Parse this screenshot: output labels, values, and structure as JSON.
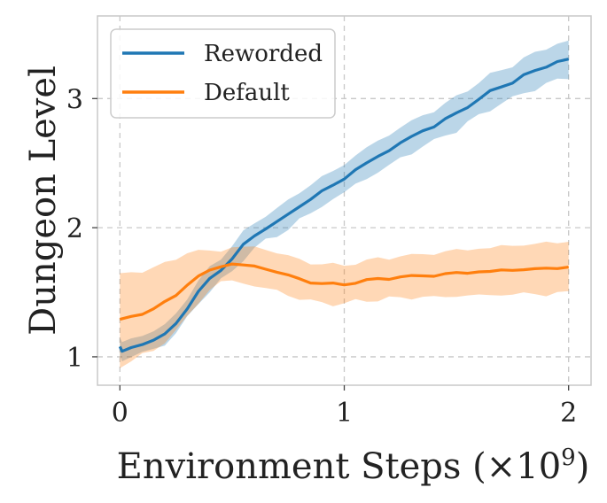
{
  "chart_data": {
    "type": "line",
    "title": "",
    "xlabel": "Environment Steps (×10",
    "xlabel_exponent": "9",
    "xlabel_close": ")",
    "ylabel": "Dungeon Level",
    "xlim": [
      -0.1,
      2.1
    ],
    "ylim": [
      0.78,
      3.64
    ],
    "x_ticks": [
      0,
      1,
      2
    ],
    "x_tick_labels": [
      "0",
      "1",
      "2"
    ],
    "y_ticks": [
      1,
      2,
      3
    ],
    "y_tick_labels": [
      "1",
      "2",
      "3"
    ],
    "grid": true,
    "legend_position": "top-left",
    "series": [
      {
        "name": "Reworded",
        "color": "#1f77b4",
        "x": [
          0,
          0.01,
          0.05,
          0.1,
          0.15,
          0.2,
          0.25,
          0.3,
          0.35,
          0.4,
          0.45,
          0.5,
          0.55,
          0.6,
          0.65,
          0.7,
          0.75,
          0.8,
          0.85,
          0.9,
          0.95,
          1.0,
          1.05,
          1.1,
          1.15,
          1.2,
          1.25,
          1.3,
          1.35,
          1.4,
          1.45,
          1.5,
          1.55,
          1.6,
          1.65,
          1.7,
          1.75,
          1.8,
          1.85,
          1.9,
          1.95,
          2.0
        ],
        "values": [
          1.08,
          1.04,
          1.07,
          1.1,
          1.13,
          1.17,
          1.26,
          1.38,
          1.5,
          1.6,
          1.68,
          1.76,
          1.86,
          1.94,
          2.0,
          2.04,
          2.1,
          2.17,
          2.22,
          2.28,
          2.33,
          2.38,
          2.45,
          2.5,
          2.55,
          2.6,
          2.66,
          2.7,
          2.75,
          2.79,
          2.84,
          2.88,
          2.94,
          3.0,
          3.05,
          3.09,
          3.13,
          3.18,
          3.21,
          3.25,
          3.29,
          3.3
        ],
        "band": [
          0.07,
          0.07,
          0.07,
          0.07,
          0.07,
          0.07,
          0.08,
          0.08,
          0.08,
          0.09,
          0.09,
          0.1,
          0.1,
          0.1,
          0.1,
          0.1,
          0.11,
          0.11,
          0.11,
          0.11,
          0.11,
          0.11,
          0.11,
          0.12,
          0.12,
          0.12,
          0.12,
          0.12,
          0.12,
          0.12,
          0.12,
          0.13,
          0.13,
          0.13,
          0.13,
          0.13,
          0.13,
          0.13,
          0.14,
          0.14,
          0.14,
          0.14
        ]
      },
      {
        "name": "Default",
        "color": "#ff7f0e",
        "x": [
          0,
          0.05,
          0.1,
          0.15,
          0.2,
          0.25,
          0.3,
          0.35,
          0.4,
          0.45,
          0.5,
          0.55,
          0.6,
          0.65,
          0.7,
          0.75,
          0.8,
          0.85,
          0.9,
          0.95,
          1.0,
          1.05,
          1.1,
          1.15,
          1.2,
          1.25,
          1.3,
          1.35,
          1.4,
          1.45,
          1.5,
          1.55,
          1.6,
          1.65,
          1.7,
          1.75,
          1.8,
          1.85,
          1.9,
          1.95,
          2.0
        ],
        "values": [
          1.28,
          1.31,
          1.34,
          1.37,
          1.42,
          1.48,
          1.56,
          1.62,
          1.67,
          1.7,
          1.72,
          1.71,
          1.7,
          1.68,
          1.66,
          1.63,
          1.6,
          1.58,
          1.57,
          1.56,
          1.56,
          1.58,
          1.59,
          1.6,
          1.61,
          1.62,
          1.62,
          1.63,
          1.63,
          1.64,
          1.65,
          1.65,
          1.66,
          1.66,
          1.67,
          1.67,
          1.68,
          1.68,
          1.68,
          1.69,
          1.7
        ],
        "band": [
          0.35,
          0.34,
          0.33,
          0.32,
          0.3,
          0.28,
          0.25,
          0.2,
          0.15,
          0.12,
          0.13,
          0.14,
          0.15,
          0.15,
          0.15,
          0.15,
          0.15,
          0.15,
          0.15,
          0.15,
          0.15,
          0.15,
          0.15,
          0.16,
          0.16,
          0.16,
          0.16,
          0.17,
          0.17,
          0.17,
          0.18,
          0.18,
          0.18,
          0.18,
          0.19,
          0.19,
          0.19,
          0.19,
          0.2,
          0.2,
          0.2
        ]
      }
    ]
  }
}
